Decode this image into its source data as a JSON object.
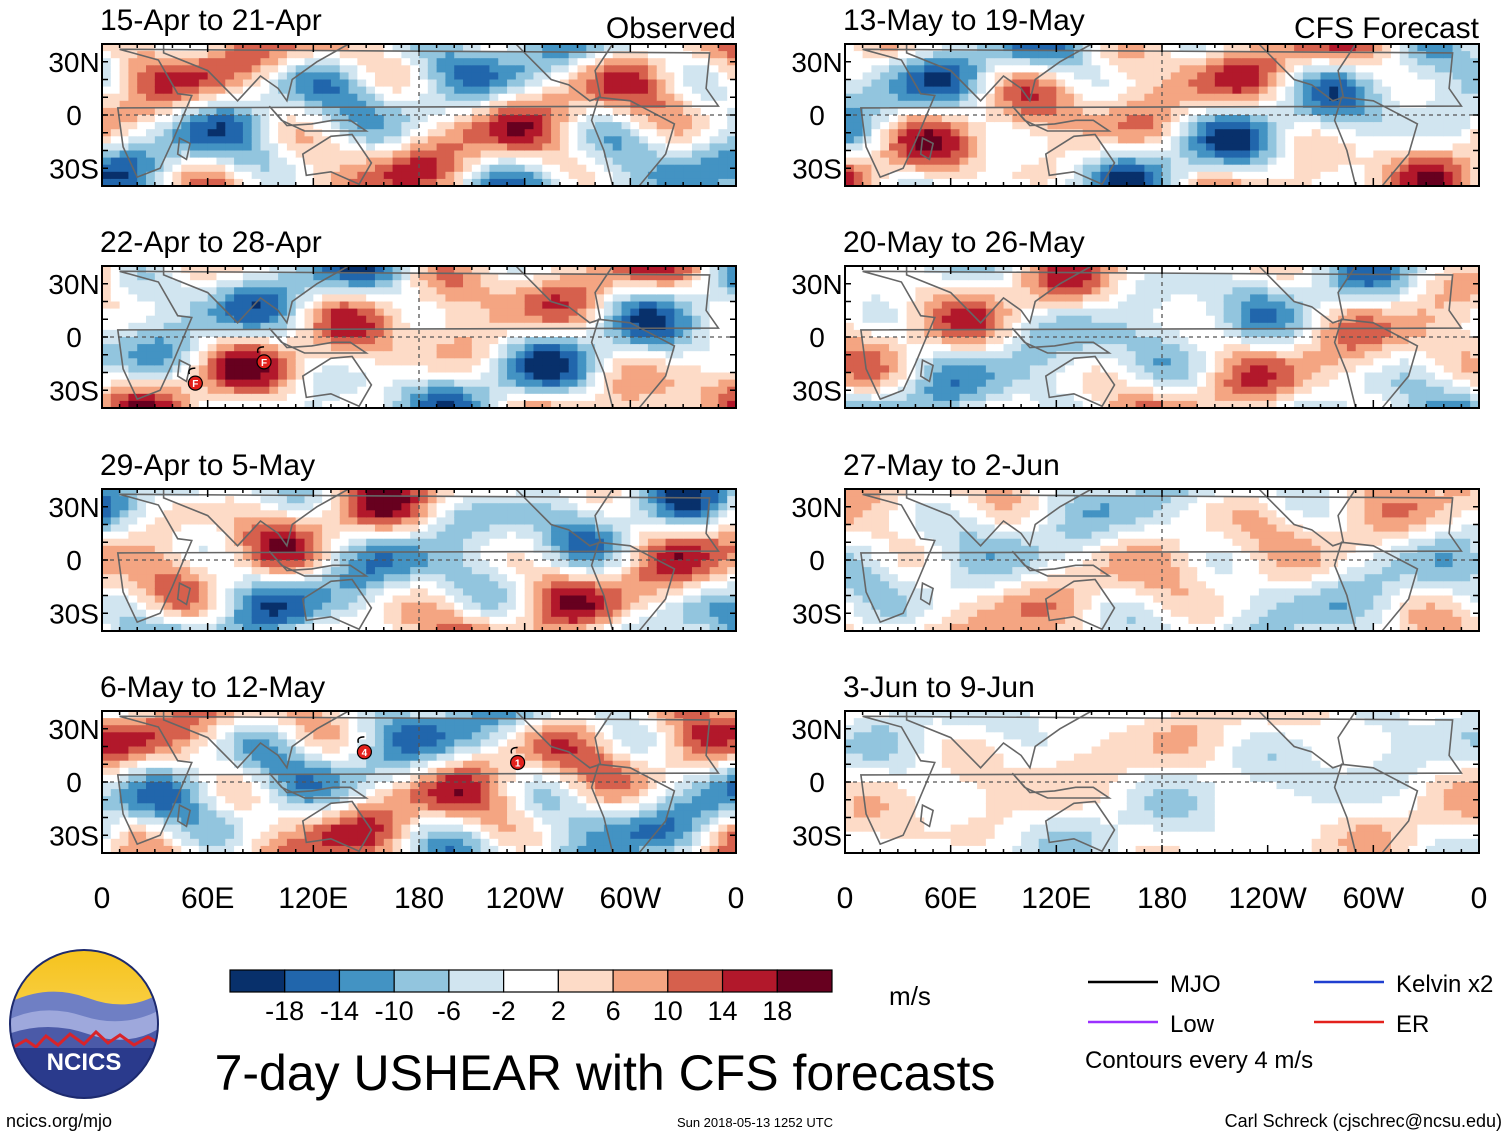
{
  "chart_data": {
    "type": "heatmap",
    "title": "7-day USHEAR with CFS forecasts",
    "variable": "USHEAR",
    "units": "m/s",
    "x_axis": {
      "tick_labels": [
        "0",
        "60E",
        "120E",
        "180",
        "120W",
        "60W",
        "0"
      ],
      "range_degrees_east": [
        0,
        360
      ],
      "reference_line_longitude": 180
    },
    "y_axis": {
      "tick_labels": [
        "30N",
        "0",
        "30S"
      ],
      "range_degrees_north": [
        -40,
        40
      ],
      "reference_line_latitude": 0
    },
    "columns": [
      {
        "name": "Observed",
        "panels": [
          {
            "title": "15-Apr to 21-Apr"
          },
          {
            "title": "22-Apr to 28-Apr",
            "storm_markers": [
              {
                "label": "F",
                "lon": 53,
                "lat": -26
              },
              {
                "label": "F",
                "lon": 92,
                "lat": -14
              }
            ]
          },
          {
            "title": "29-Apr to 5-May"
          },
          {
            "title": "6-May to 12-May",
            "storm_markers": [
              {
                "label": "4",
                "lon": 149,
                "lat": 17
              },
              {
                "label": "1",
                "lon": 236,
                "lat": 11
              }
            ]
          }
        ]
      },
      {
        "name": "CFS Forecast",
        "panels": [
          {
            "title": "13-May to 19-May"
          },
          {
            "title": "20-May to 26-May"
          },
          {
            "title": "27-May to 2-Jun"
          },
          {
            "title": "3-Jun to 9-Jun"
          }
        ]
      }
    ],
    "colorbar": {
      "boundaries": [
        -22,
        -18,
        -14,
        -10,
        -6,
        -2,
        2,
        6,
        10,
        14,
        18,
        22
      ],
      "tick_labels": [
        "-18",
        "-14",
        "-10",
        "-6",
        "-2",
        "2",
        "6",
        "10",
        "14",
        "18"
      ],
      "colors": [
        "#08306b",
        "#2166ac",
        "#4393c3",
        "#92c5de",
        "#d1e5f0",
        "#ffffff",
        "#fddbc7",
        "#f4a582",
        "#d6604d",
        "#b2182b",
        "#67001f"
      ]
    },
    "legend": {
      "entries": [
        {
          "label": "MJO",
          "color": "#000000"
        },
        {
          "label": "Kelvin x2",
          "color": "#1f3fd0"
        },
        {
          "label": "Low",
          "color": "#9b30ff"
        },
        {
          "label": "ER",
          "color": "#e3211c"
        }
      ],
      "note": "Contours every 4 m/s"
    }
  },
  "branding": {
    "logo_text": "NCICS",
    "url": "ncics.org/mjo",
    "timestamp": "Sun 2018-05-13 1252 UTC",
    "author": "Carl Schreck (cjschrec@ncsu.edu)"
  }
}
